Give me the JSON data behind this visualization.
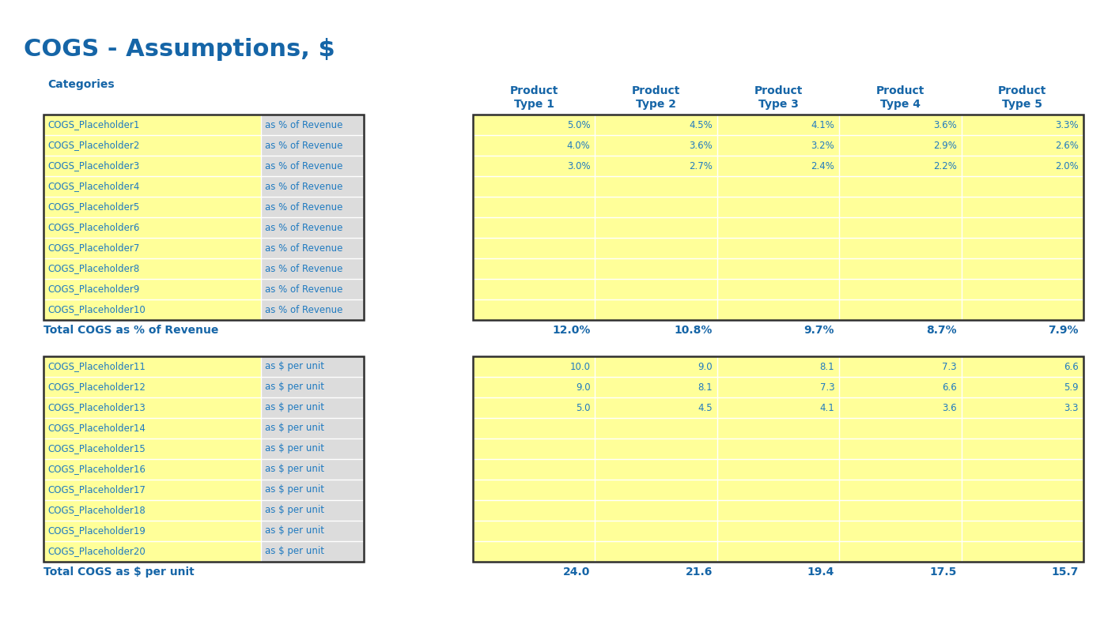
{
  "title": "COGS - Assumptions, $",
  "title_color": "#1565A7",
  "title_fontsize": 24,
  "bg_color": "#FFFFFF",
  "categories_label": "Categories",
  "header_color": "#1565A7",
  "col_headers": [
    "Product\nType 1",
    "Product\nType 2",
    "Product\nType 3",
    "Product\nType 4",
    "Product\nType 5"
  ],
  "section1_rows": [
    [
      "COGS_Placeholder1",
      "as % of Revenue",
      "5.0%",
      "4.5%",
      "4.1%",
      "3.6%",
      "3.3%"
    ],
    [
      "COGS_Placeholder2",
      "as % of Revenue",
      "4.0%",
      "3.6%",
      "3.2%",
      "2.9%",
      "2.6%"
    ],
    [
      "COGS_Placeholder3",
      "as % of Revenue",
      "3.0%",
      "2.7%",
      "2.4%",
      "2.2%",
      "2.0%"
    ],
    [
      "COGS_Placeholder4",
      "as % of Revenue",
      "",
      "",
      "",
      "",
      ""
    ],
    [
      "COGS_Placeholder5",
      "as % of Revenue",
      "",
      "",
      "",
      "",
      ""
    ],
    [
      "COGS_Placeholder6",
      "as % of Revenue",
      "",
      "",
      "",
      "",
      ""
    ],
    [
      "COGS_Placeholder7",
      "as % of Revenue",
      "",
      "",
      "",
      "",
      ""
    ],
    [
      "COGS_Placeholder8",
      "as % of Revenue",
      "",
      "",
      "",
      "",
      ""
    ],
    [
      "COGS_Placeholder9",
      "as % of Revenue",
      "",
      "",
      "",
      "",
      ""
    ],
    [
      "COGS_Placeholder10",
      "as % of Revenue",
      "",
      "",
      "",
      "",
      ""
    ]
  ],
  "section1_total_label": "Total COGS as % of Revenue",
  "section1_totals": [
    "12.0%",
    "10.8%",
    "9.7%",
    "8.7%",
    "7.9%"
  ],
  "section2_rows": [
    [
      "COGS_Placeholder11",
      "as $ per unit",
      "10.0",
      "9.0",
      "8.1",
      "7.3",
      "6.6"
    ],
    [
      "COGS_Placeholder12",
      "as $ per unit",
      "9.0",
      "8.1",
      "7.3",
      "6.6",
      "5.9"
    ],
    [
      "COGS_Placeholder13",
      "as $ per unit",
      "5.0",
      "4.5",
      "4.1",
      "3.6",
      "3.3"
    ],
    [
      "COGS_Placeholder14",
      "as $ per unit",
      "",
      "",
      "",
      "",
      ""
    ],
    [
      "COGS_Placeholder15",
      "as $ per unit",
      "",
      "",
      "",
      "",
      ""
    ],
    [
      "COGS_Placeholder16",
      "as $ per unit",
      "",
      "",
      "",
      "",
      ""
    ],
    [
      "COGS_Placeholder17",
      "as $ per unit",
      "",
      "",
      "",
      "",
      ""
    ],
    [
      "COGS_Placeholder18",
      "as $ per unit",
      "",
      "",
      "",
      "",
      ""
    ],
    [
      "COGS_Placeholder19",
      "as $ per unit",
      "",
      "",
      "",
      "",
      ""
    ],
    [
      "COGS_Placeholder20",
      "as $ per unit",
      "",
      "",
      "",
      "",
      ""
    ]
  ],
  "section2_total_label": "Total COGS as $ per unit",
  "section2_totals": [
    "24.0",
    "21.6",
    "19.4",
    "17.5",
    "15.7"
  ],
  "yellow_bg": "#FFFF99",
  "light_gray_bg": "#DCDCDC",
  "text_blue": "#1F7AC0",
  "border_color": "#2F2F2F"
}
